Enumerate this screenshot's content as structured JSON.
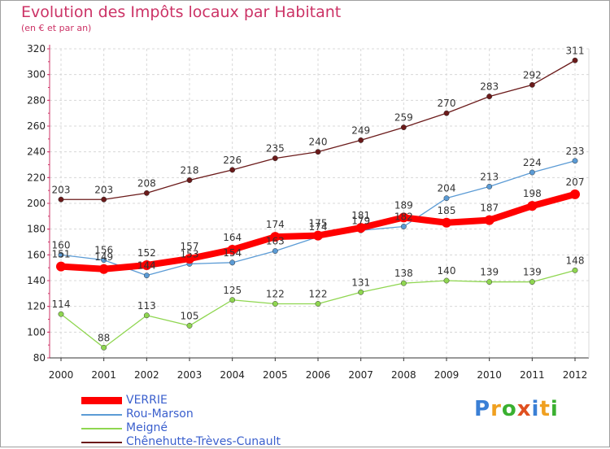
{
  "chart_data": {
    "type": "line",
    "title": "Evolution des Impôts locaux par Habitant",
    "subtitle": "(en € et par an)",
    "xlabel": "",
    "ylabel": "",
    "ylim": [
      80,
      320
    ],
    "yticks": [
      80,
      100,
      120,
      140,
      160,
      180,
      200,
      220,
      240,
      260,
      280,
      300,
      320
    ],
    "x": [
      "2000",
      "2001",
      "2002",
      "2003",
      "2004",
      "2005",
      "2006",
      "2007",
      "2008",
      "2009",
      "2010",
      "2011",
      "2012"
    ],
    "series": [
      {
        "name": "Chênehutte-Trèves-Cunault",
        "color": "#6b1a1a",
        "values": [
          203,
          203,
          208,
          218,
          226,
          235,
          240,
          249,
          259,
          270,
          283,
          292,
          311
        ]
      },
      {
        "name": "Meigné",
        "color": "#8fd650",
        "values": [
          114,
          88,
          113,
          105,
          125,
          122,
          122,
          131,
          138,
          140,
          139,
          139,
          148
        ]
      },
      {
        "name": "Rou-Marson",
        "color": "#5b9bd5",
        "values": [
          160,
          156,
          144,
          153,
          154,
          163,
          174,
          179,
          182,
          204,
          213,
          224,
          233
        ]
      },
      {
        "name": "VERRIE",
        "color": "#ff0000",
        "values": [
          151,
          149,
          152,
          157,
          164,
          174,
          175,
          181,
          189,
          185,
          187,
          198,
          207
        ]
      }
    ],
    "legend_position": "bottom-left"
  },
  "legend": [
    {
      "label": "VERRIE",
      "color": "#ff0000",
      "style": "thick"
    },
    {
      "label": "Rou-Marson",
      "color": "#5b9bd5",
      "style": "thin"
    },
    {
      "label": "Meigné",
      "color": "#8fd650",
      "style": "thin"
    },
    {
      "label": "Chênehutte-Trèves-Cunault",
      "color": "#6b1a1a",
      "style": "thin"
    }
  ],
  "logo": {
    "letters": [
      "P",
      "r",
      "o",
      "x",
      "i",
      "t",
      "i"
    ],
    "colors": [
      "#3a7fd5",
      "#f0a020",
      "#3ab030",
      "#e05020",
      "#3a7fd5",
      "#f0a020",
      "#3ab030"
    ]
  }
}
